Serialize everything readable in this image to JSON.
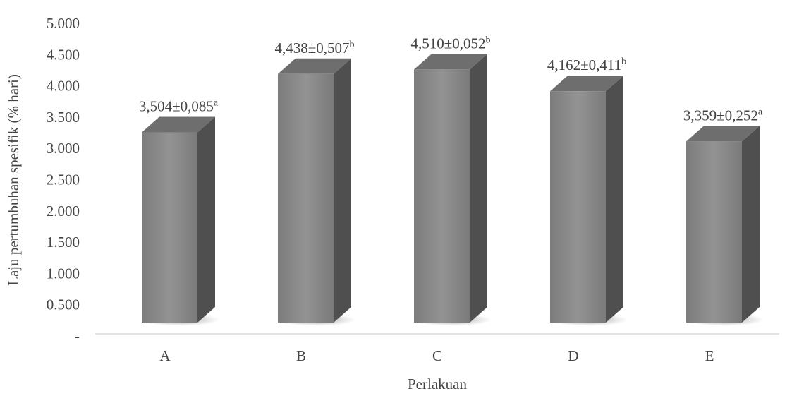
{
  "chart_data": {
    "type": "bar",
    "categories": [
      "A",
      "B",
      "C",
      "D",
      "E"
    ],
    "values": [
      3.504,
      4.438,
      4.51,
      4.162,
      3.359
    ],
    "data_labels": [
      {
        "text": "3,504±0,085",
        "sup": "a"
      },
      {
        "text": "4,438±0,507",
        "sup": "b"
      },
      {
        "text": "4,510±0,052",
        "sup": "b"
      },
      {
        "text": "4,162±0,411",
        "sup": "b"
      },
      {
        "text": "3,359±0,252",
        "sup": "a"
      }
    ],
    "title": "",
    "xlabel": "Perlakuan",
    "ylabel": "Laju pertumbuhan spesifik (% hari)",
    "ylim": [
      0,
      5
    ],
    "y_tick_values": [
      0,
      0.5,
      1,
      1.5,
      2,
      2.5,
      3,
      3.5,
      4,
      4.5,
      5
    ],
    "y_tick_labels": [
      "-",
      "0.500",
      "1.000",
      "1.500",
      "2.000",
      "2.500",
      "3.000",
      "3.500",
      "4.000",
      "4.500",
      "5.000"
    ],
    "grid": false,
    "legend": "none",
    "style": "3d-column",
    "colors": {
      "bar_front": "#8a8a8a",
      "bar_side": "#4f4f4f",
      "bar_top": "#6e6e6e",
      "baseline": "#d9d9d9",
      "text": "#444444"
    }
  }
}
